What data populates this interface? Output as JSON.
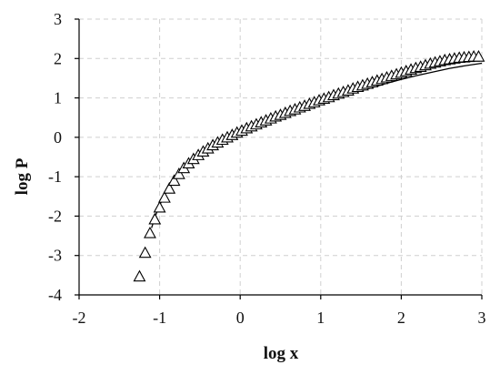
{
  "chart_data": {
    "type": "scatter",
    "title": "",
    "xlabel": "log x",
    "ylabel": "log P",
    "xlim": [
      -2,
      3
    ],
    "ylim": [
      -4,
      3
    ],
    "xticks": [
      "-2",
      "-1",
      "0",
      "1",
      "2",
      "3"
    ],
    "yticks": [
      "3",
      "2",
      "1",
      "0",
      "-1",
      "-2",
      "-3",
      "-4"
    ],
    "xtick_values": [
      -2,
      -1,
      0,
      1,
      2,
      3
    ],
    "ytick_values": [
      3,
      2,
      1,
      0,
      -1,
      -2,
      -3,
      -4
    ],
    "grid": true,
    "grid_style": "dashed",
    "legend": "none",
    "colors": {
      "axis": "#000000",
      "grid": "#cfcfcf",
      "marker": "#000000",
      "curve": "#000000"
    },
    "series": [
      {
        "kind": "points",
        "marker": "triangle-open",
        "x": [
          -1.25,
          -1.18,
          -1.12,
          -1.06,
          -1.0,
          -0.94,
          -0.88,
          -0.82,
          -0.76,
          -0.7,
          -0.64,
          -0.58,
          -0.52,
          -0.46,
          -0.4,
          -0.34,
          -0.28,
          -0.22,
          -0.16,
          -0.1,
          -0.04,
          0.02,
          0.08,
          0.14,
          0.2,
          0.26,
          0.32,
          0.38,
          0.44,
          0.5,
          0.56,
          0.62,
          0.68,
          0.74,
          0.8,
          0.86,
          0.92,
          0.98,
          1.04,
          1.1,
          1.16,
          1.22,
          1.28,
          1.34,
          1.4,
          1.46,
          1.52,
          1.58,
          1.64,
          1.7,
          1.76,
          1.82,
          1.88,
          1.94,
          2.0,
          2.06,
          2.12,
          2.18,
          2.24,
          2.3,
          2.36,
          2.42,
          2.48,
          2.54,
          2.6,
          2.66,
          2.72,
          2.78,
          2.84,
          2.9,
          2.96
        ],
        "y": [
          -3.55,
          -2.95,
          -2.45,
          -2.1,
          -1.8,
          -1.55,
          -1.32,
          -1.12,
          -0.95,
          -0.8,
          -0.68,
          -0.57,
          -0.47,
          -0.38,
          -0.3,
          -0.22,
          -0.15,
          -0.08,
          -0.02,
          0.04,
          0.1,
          0.15,
          0.21,
          0.26,
          0.31,
          0.36,
          0.41,
          0.46,
          0.51,
          0.55,
          0.6,
          0.65,
          0.69,
          0.74,
          0.78,
          0.83,
          0.87,
          0.92,
          0.96,
          1.0,
          1.05,
          1.09,
          1.13,
          1.17,
          1.22,
          1.26,
          1.3,
          1.34,
          1.38,
          1.42,
          1.46,
          1.5,
          1.54,
          1.58,
          1.62,
          1.66,
          1.7,
          1.74,
          1.77,
          1.81,
          1.85,
          1.88,
          1.91,
          1.94,
          1.96,
          1.98,
          2.0,
          2.01,
          2.02,
          2.03,
          2.03
        ]
      },
      {
        "kind": "curve",
        "x": [
          -1.1,
          -1.05,
          -1.0,
          -0.9,
          -0.8,
          -0.7,
          -0.6,
          -0.5,
          -0.4,
          -0.3,
          -0.2,
          -0.1,
          0.0,
          0.2,
          0.4,
          0.6,
          0.8,
          1.0,
          1.2,
          1.4,
          1.6,
          1.8,
          2.0,
          2.2,
          2.4,
          2.6,
          2.8,
          3.0
        ],
        "y": [
          -2.3,
          -1.98,
          -1.72,
          -1.32,
          -1.02,
          -0.79,
          -0.6,
          -0.44,
          -0.3,
          -0.18,
          -0.08,
          0.02,
          0.11,
          0.28,
          0.43,
          0.58,
          0.72,
          0.86,
          0.99,
          1.12,
          1.24,
          1.36,
          1.47,
          1.57,
          1.66,
          1.75,
          1.82,
          1.88
        ]
      }
    ]
  }
}
